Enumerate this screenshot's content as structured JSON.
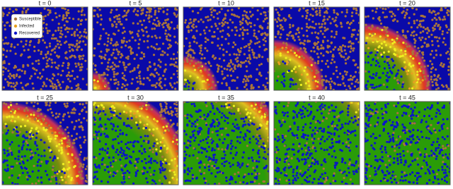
{
  "panels": [
    {
      "title": "t = 0"
    },
    {
      "title": "t = 5"
    },
    {
      "title": "t = 10"
    },
    {
      "title": "t = 15"
    },
    {
      "title": "t = 20"
    },
    {
      "title": "t = 25"
    },
    {
      "title": "t = 30"
    },
    {
      "title": "t = 35"
    },
    {
      "title": "t = 40"
    },
    {
      "title": "t = 45"
    }
  ],
  "legend": [
    {
      "label": "Susceptible",
      "color": "#a8743c"
    },
    {
      "label": "Infected",
      "color": "#e8a020"
    },
    {
      "label": "Recovered",
      "color": "#0a14c8"
    }
  ]
}
